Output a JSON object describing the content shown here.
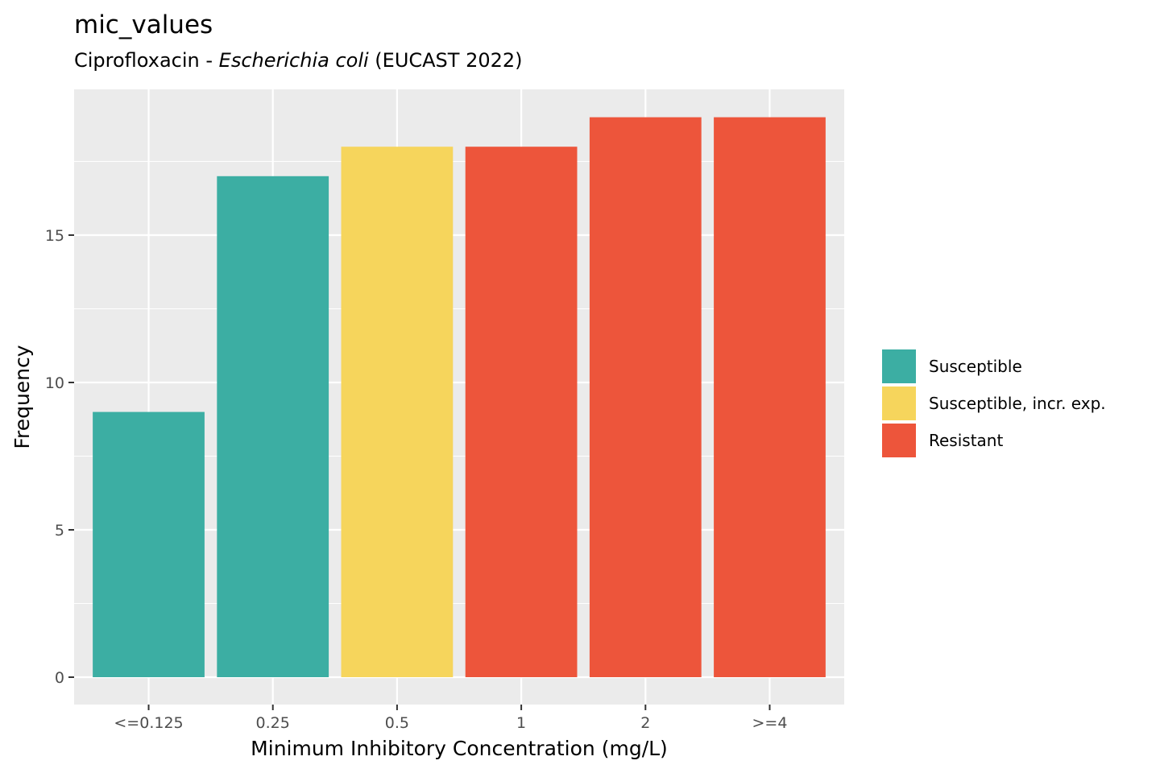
{
  "chart_data": {
    "type": "bar",
    "title": "mic_values",
    "subtitle": {
      "prefix": "Ciprofloxacin - ",
      "organism": "Escherichia coli",
      "suffix": " (EUCAST 2022)"
    },
    "xlabel": "Minimum Inhibitory Concentration (mg/L)",
    "ylabel": "Frequency",
    "categories": [
      "<=0.125",
      "0.25",
      "0.5",
      "1",
      "2",
      ">=4"
    ],
    "values": [
      9,
      17,
      18,
      18,
      19,
      19
    ],
    "interpretation": [
      "Susceptible",
      "Susceptible",
      "Susceptible, incr. exp.",
      "Resistant",
      "Resistant",
      "Resistant"
    ],
    "yticks": [
      0,
      5,
      10,
      15
    ],
    "ylim": [
      0,
      19
    ],
    "grid": true,
    "legend_position": "right",
    "legend": [
      {
        "label": "Susceptible",
        "color": "#3CAEA3"
      },
      {
        "label": "Susceptible, incr. exp.",
        "color": "#F6D55C"
      },
      {
        "label": "Resistant",
        "color": "#ED553B"
      }
    ]
  },
  "colors": {
    "panel_background": "#EBEBEB",
    "grid": "#FFFFFF",
    "tick": "#333333"
  }
}
